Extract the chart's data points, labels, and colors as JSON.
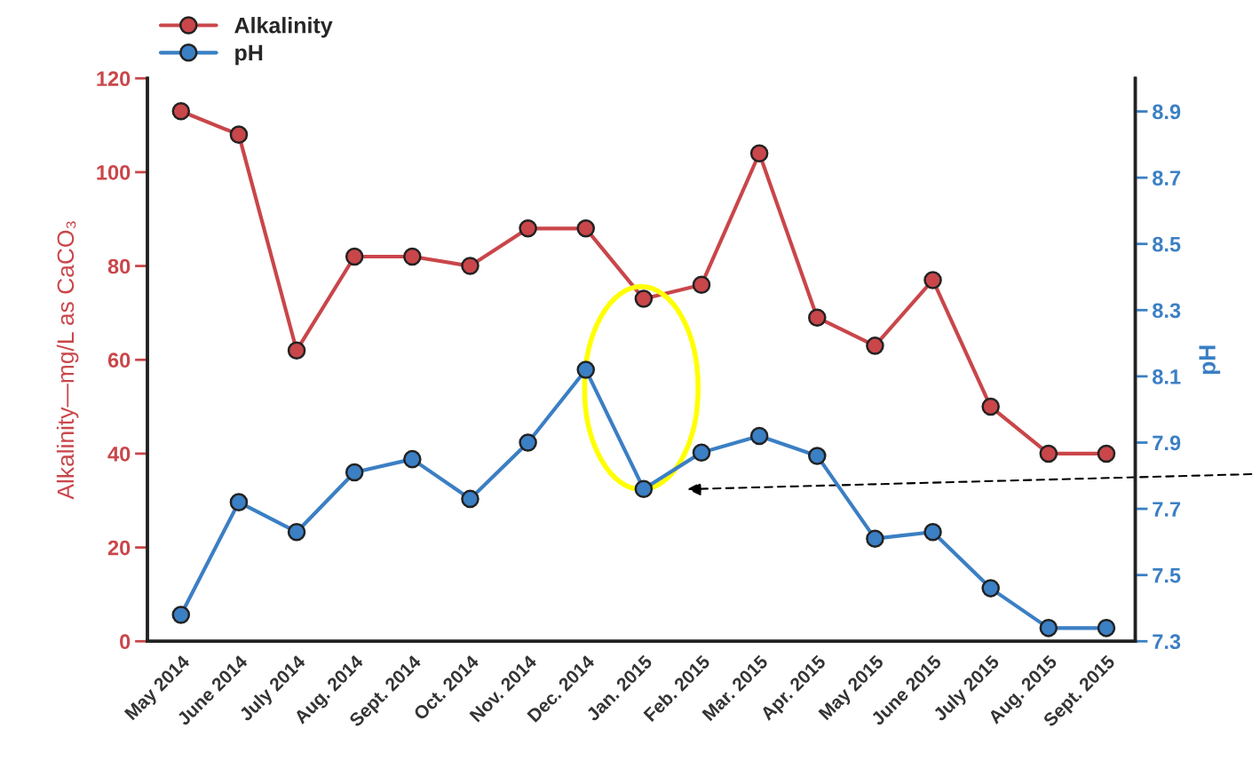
{
  "chart_data": {
    "type": "line",
    "categories": [
      "May 2014",
      "June 2014",
      "July 2014",
      "Aug. 2014",
      "Sept. 2014",
      "Oct. 2014",
      "Nov. 2014",
      "Dec. 2014",
      "Jan. 2015",
      "Feb. 2015",
      "Mar. 2015",
      "Apr. 2015",
      "May 2015",
      "June 2015",
      "July 2015",
      "Aug. 2015",
      "Sept. 2015"
    ],
    "series": [
      {
        "name": "Alkalinity",
        "color": "#c9464a",
        "values": [
          113,
          108,
          62,
          82,
          82,
          80,
          88,
          88,
          73,
          76,
          104,
          69,
          63,
          77,
          50,
          40,
          40
        ]
      },
      {
        "name": "pH",
        "color": "#3b7fc4",
        "axis": "y2",
        "values": [
          7.38,
          7.72,
          7.63,
          7.81,
          7.85,
          7.73,
          7.9,
          8.12,
          7.76,
          7.87,
          7.92,
          7.86,
          7.61,
          7.63,
          7.46,
          7.34,
          7.34
        ]
      }
    ],
    "ylabel": "Alkalinity—mg/L as CaCO₃",
    "y2label": "pH",
    "ylim": [
      0,
      120
    ],
    "yticks": [
      0,
      20,
      40,
      60,
      80,
      100,
      120
    ],
    "y2lim": [
      7.3,
      9.0
    ],
    "y2ticks": [
      7.3,
      7.5,
      7.7,
      7.9,
      8.1,
      8.3,
      8.5,
      8.7,
      8.9
    ],
    "marker": "circle",
    "line_style": "solid",
    "grid": false,
    "legend": "top left"
  }
}
